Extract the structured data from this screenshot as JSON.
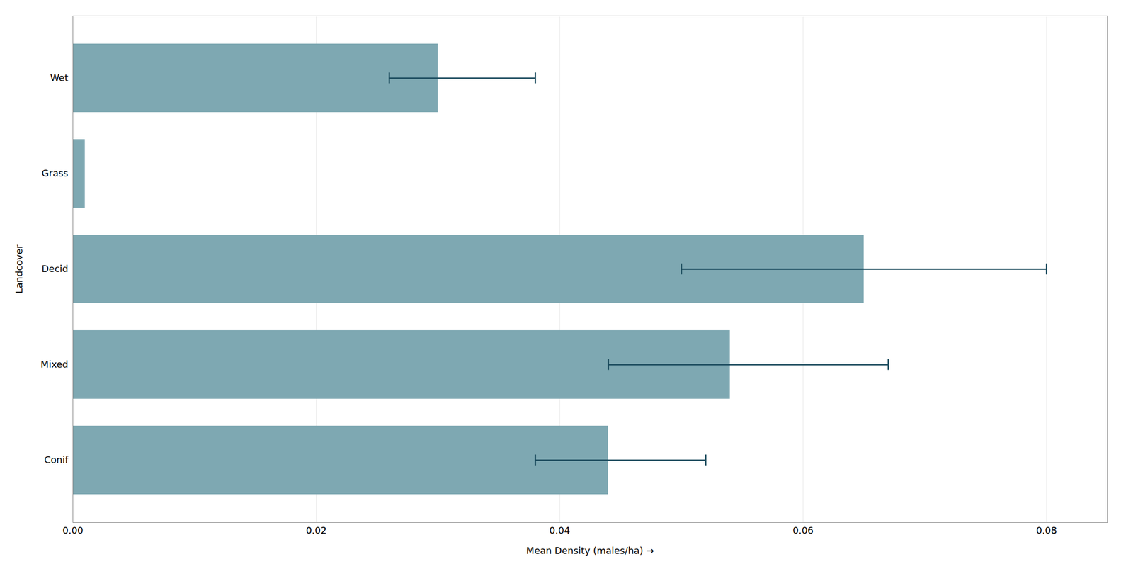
{
  "chart_data": {
    "type": "bar",
    "orientation": "horizontal",
    "categories": [
      "Conif",
      "Mixed",
      "Decid",
      "Grass",
      "Wet"
    ],
    "values": [
      0.044,
      0.054,
      0.065,
      0.001,
      0.03
    ],
    "color": "#7ea8b2",
    "error_bars": {
      "low": [
        0.006,
        0.01,
        0.015,
        null,
        0.004
      ],
      "high": [
        0.008,
        0.013,
        0.015,
        null,
        0.008
      ],
      "color": "#1a4a5c"
    },
    "xlabel": "Mean Density (males/ha)",
    "ylabel": "Landcover",
    "xlim": [
      0,
      0.085
    ],
    "xticks": [
      {
        "value": 0,
        "label": "0.00"
      },
      0.02,
      0.04,
      0.06,
      0.08
    ],
    "grid": true
  }
}
